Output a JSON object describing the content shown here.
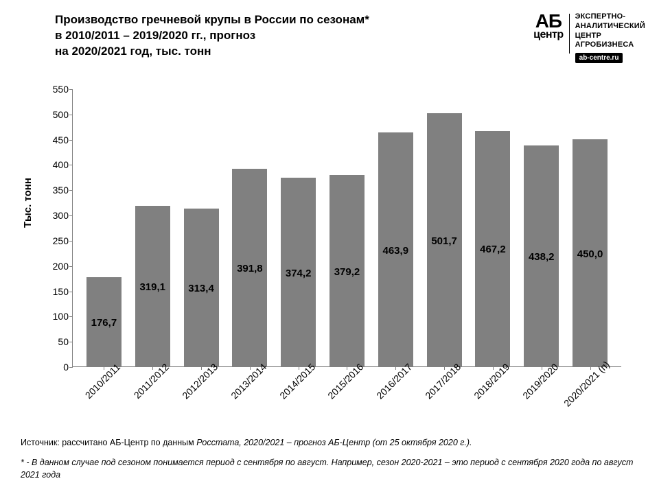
{
  "title": {
    "line1": "Производство гречневой крупы в России по сезонам*",
    "line2": "в 2010/2011 – 2019/2020 гг., прогноз",
    "line3": "на 2020/2021 год, тыс. тонн"
  },
  "logo": {
    "ab": "АБ",
    "centr": "центр",
    "text_l1": "ЭКСПЕРТНО-",
    "text_l2": "АНАЛИТИЧЕСКИЙ",
    "text_l3": "ЦЕНТР",
    "text_l4": "АГРОБИЗНЕСА",
    "url": "ab-centre.ru"
  },
  "chart": {
    "type": "bar",
    "ylabel": "Тыс. тонн",
    "ylim": [
      0,
      550
    ],
    "ytick_step": 50,
    "yticks": [
      0,
      50,
      100,
      150,
      200,
      250,
      300,
      350,
      400,
      450,
      500,
      550
    ],
    "categories": [
      "2010/2011",
      "2011/2012",
      "2012/2013",
      "2013/2014",
      "2014/2015",
      "2015/2016",
      "2016/2017",
      "2017/2018",
      "2018/2019",
      "2019/2020",
      "2020/2021 (п)"
    ],
    "values": [
      176.7,
      319.1,
      313.4,
      391.8,
      374.2,
      379.2,
      463.9,
      501.7,
      467.2,
      438.2,
      450.0
    ],
    "value_labels": [
      "176,7",
      "319,1",
      "313,4",
      "391,8",
      "374,2",
      "379,2",
      "463,9",
      "501,7",
      "467,2",
      "438,2",
      "450,0"
    ],
    "bar_color": "#808080",
    "axis_color": "#808080",
    "background_color": "#ffffff",
    "label_fontsize": 15,
    "label_fontweight": "bold",
    "xlabel_rotation": -45,
    "bar_width_ratio": 0.72,
    "label_inside_threshold": 300
  },
  "footer": {
    "source_prefix": "Источник: рассчитано АБ-Центр по данным ",
    "source_italic": "Росстата, 2020/2021 – прогноз АБ-Центр (от 25 октября 2020 г.).",
    "note": "* - В данном случае под сезоном понимается период с сентября по август. Например, сезон 2020-2021 – это период с сентября 2020 года по август 2021 года"
  }
}
